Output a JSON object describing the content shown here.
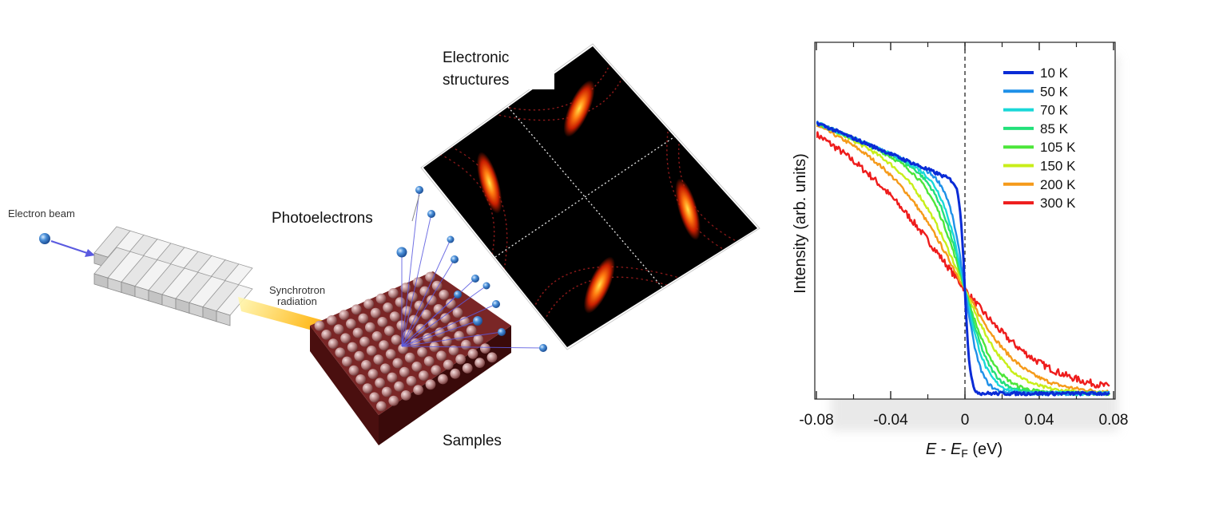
{
  "labels": {
    "electron_beam": "Electron beam",
    "synchrotron_line1": "Synchrotron",
    "synchrotron_line2": "radiation",
    "photoelectrons": "Photoelectrons",
    "electronic_line1": "Electronic",
    "electronic_line2": "structures",
    "samples": "Samples"
  },
  "colors": {
    "electron": "#4a8fd8",
    "beam_arrow": "#5a5ae0",
    "sample": "#6b1a1a",
    "sphere": "#c89a9a",
    "map_bg": "#000000",
    "band": "#ff5a00"
  },
  "chart_data": {
    "type": "line",
    "xlabel_main": "E",
    "xlabel_minus": " - ",
    "xlabel_E2": "E",
    "xlabel_sub": "F",
    "xlabel_unit": " (eV)",
    "ylabel": "Intensity (arb. units)",
    "xlim": [
      -0.08,
      0.08
    ],
    "ylim": [
      0,
      1
    ],
    "x_ticks": [
      -0.08,
      -0.04,
      0,
      0.04,
      0.08
    ],
    "x_tick_labels": [
      "-0.08",
      "-0.04",
      "0",
      "0.04",
      "0.08"
    ],
    "fermi_line_x": 0,
    "series": [
      {
        "name": "10 K",
        "temperature": 10,
        "color": "#0a2bd6"
      },
      {
        "name": "50 K",
        "temperature": 50,
        "color": "#1e90e8"
      },
      {
        "name": "70 K",
        "temperature": 70,
        "color": "#19d8d8"
      },
      {
        "name": "85 K",
        "temperature": 85,
        "color": "#22e07a"
      },
      {
        "name": "105 K",
        "temperature": 105,
        "color": "#4ce63a"
      },
      {
        "name": "150 K",
        "temperature": 150,
        "color": "#c8ee1a"
      },
      {
        "name": "200 K",
        "temperature": 200,
        "color": "#f59a1a"
      },
      {
        "name": "300 K",
        "temperature": 300,
        "color": "#ee1c1c"
      }
    ]
  }
}
